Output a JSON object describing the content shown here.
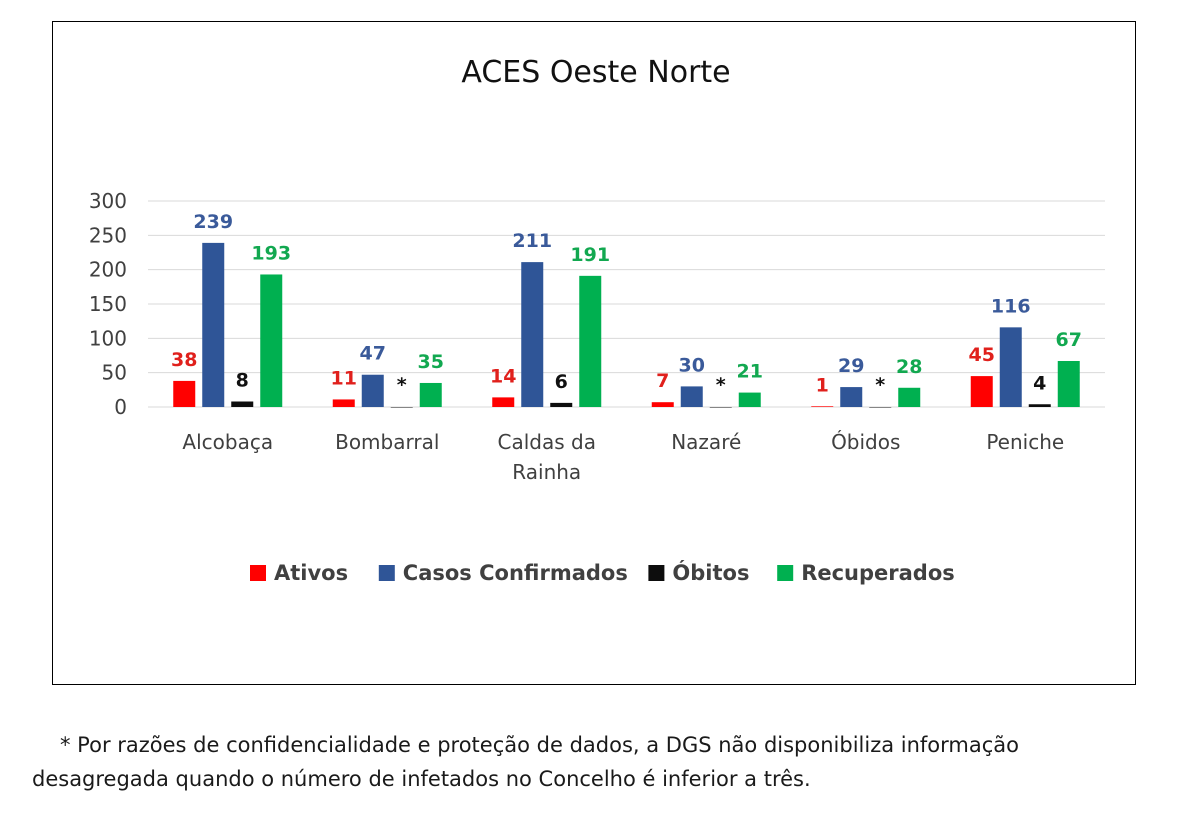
{
  "chart_data": {
    "type": "bar",
    "title": "ACES Oeste Norte",
    "categories": [
      [
        "Alcobaça"
      ],
      [
        "Bombarral"
      ],
      [
        "Caldas da",
        "Rainha"
      ],
      [
        "Nazaré"
      ],
      [
        "Óbidos"
      ],
      [
        "Peniche"
      ]
    ],
    "series": [
      {
        "name": "Ativos",
        "color": "#ff0000",
        "labelColor": "#e0201c",
        "values": [
          38,
          11,
          14,
          7,
          1,
          45
        ],
        "labels": [
          "38",
          "11",
          "14",
          "7",
          "1",
          "45"
        ]
      },
      {
        "name": "Casos Confirmados",
        "color": "#2f5597",
        "labelColor": "#3a5a9a",
        "values": [
          239,
          47,
          211,
          30,
          29,
          116
        ],
        "labels": [
          "239",
          "47",
          "211",
          "30",
          "29",
          "116"
        ]
      },
      {
        "name": "Óbitos",
        "color": "#0d0d0d",
        "labelColor": "#111111",
        "values": [
          8,
          0,
          6,
          0,
          0,
          4
        ],
        "labels": [
          "8",
          "*",
          "6",
          "*",
          "*",
          "4"
        ]
      },
      {
        "name": "Recuperados",
        "color": "#00b050",
        "labelColor": "#12a850",
        "values": [
          193,
          35,
          191,
          21,
          28,
          67
        ],
        "labels": [
          "193",
          "35",
          "191",
          "21",
          "28",
          "67"
        ]
      }
    ],
    "ylim": [
      0,
      300
    ],
    "yticks": [
      "0",
      "50",
      "100",
      "150",
      "200",
      "250",
      "300"
    ],
    "grid": true,
    "legend": "bottom"
  },
  "footnote": {
    "line1": "* Por razões de confidencialidade e proteção de dados, a DGS não disponibiliza informação",
    "line2": "desagregada quando o número de infetados no Concelho é inferior a três."
  }
}
